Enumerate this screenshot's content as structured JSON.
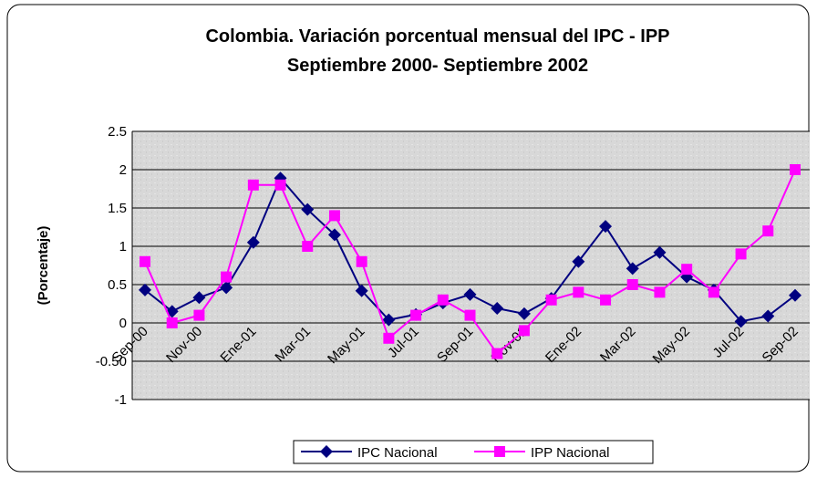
{
  "chart_data": {
    "type": "line",
    "title": "Colombia.  Variación porcentual mensual del IPC - IPP",
    "subtitle": "Septiembre 2000- Septiembre 2002",
    "y_label": "(Porcentaje)",
    "categories": [
      "Sep-00",
      null,
      "Nov-00",
      null,
      "Ene-01",
      null,
      "Mar-01",
      null,
      "May-01",
      null,
      "Jul-01",
      null,
      "Sep-01",
      null,
      "Nov-01",
      null,
      "Ene-02",
      null,
      "Mar-02",
      null,
      "May-02",
      null,
      "Jul-02",
      null,
      "Sep-02"
    ],
    "series": [
      {
        "name": "IPC Nacional",
        "color": "#000080",
        "marker": "diamond",
        "values": [
          0.43,
          0.15,
          0.33,
          0.46,
          1.05,
          1.89,
          1.48,
          1.15,
          0.42,
          0.04,
          0.11,
          0.26,
          0.37,
          0.19,
          0.12,
          0.32,
          0.8,
          1.26,
          0.71,
          0.92,
          0.6,
          0.43,
          0.02,
          0.09,
          0.36
        ]
      },
      {
        "name": "IPP Nacional",
        "color": "#ff00ff",
        "marker": "square",
        "values": [
          0.8,
          0.0,
          0.1,
          0.6,
          1.8,
          1.8,
          1.0,
          1.4,
          0.8,
          -0.2,
          0.1,
          0.3,
          0.1,
          -0.4,
          -0.1,
          0.3,
          0.4,
          0.3,
          0.5,
          0.4,
          0.7,
          0.4,
          0.9,
          1.2,
          2.0
        ]
      }
    ],
    "ylim": [
      -1,
      2.5
    ],
    "yticks": [
      -1,
      {
        "value": -0.5,
        "label": "-0.50"
      },
      0,
      0.5,
      1,
      1.5,
      2,
      2.5
    ],
    "grid": true,
    "legend": "bottom"
  }
}
